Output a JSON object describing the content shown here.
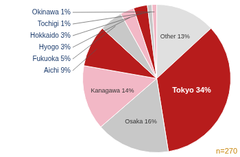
{
  "chart_data": {
    "type": "pie",
    "categories": [
      "Other",
      "Tokyo",
      "Osaka",
      "Kanagawa",
      "Aichi",
      "Fukuoka",
      "Hyogo",
      "Hokkaido",
      "Tochigi",
      "Okinawa"
    ],
    "values": [
      13,
      34,
      16,
      14,
      9,
      5,
      3,
      3,
      1,
      1
    ],
    "value_labels": [
      "Other 13%",
      "Tokyo 34%",
      "Osaka 16%",
      "Kanagawa 14%",
      "Aichi 9%",
      "Fukuoka 5%",
      "Hyogo 3%",
      "Hokkaido 3%",
      "Tochigi 1%",
      "Okinawa 1%"
    ],
    "colors": [
      "#e0e0e0",
      "#b71c1c",
      "#c8c8c8",
      "#f2b8c6",
      "#b71c1c",
      "#c8c8c8",
      "#f2b8c6",
      "#b71c1c",
      "#c8c8c8",
      "#f2b8c6"
    ],
    "data_labels": true,
    "annotations": [
      "n=270"
    ]
  }
}
